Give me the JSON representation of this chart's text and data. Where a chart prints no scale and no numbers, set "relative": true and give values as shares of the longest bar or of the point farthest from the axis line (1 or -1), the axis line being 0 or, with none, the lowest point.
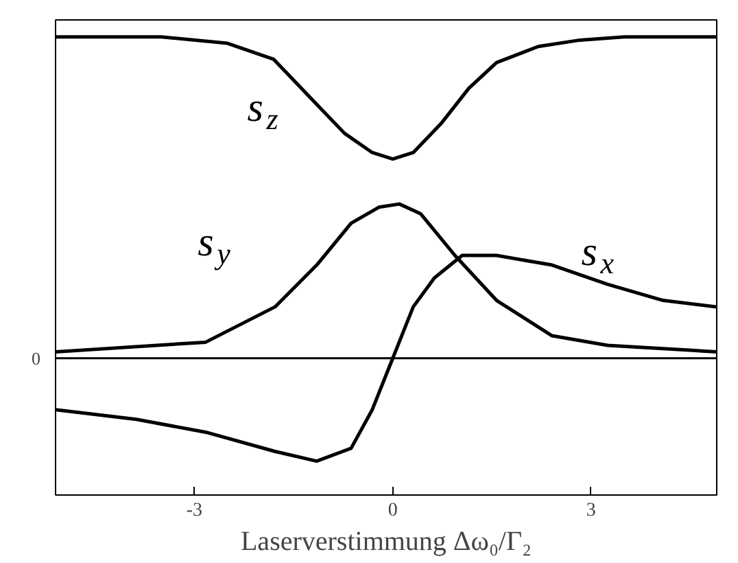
{
  "chart_data": {
    "type": "line",
    "relative": true,
    "xlabel": "Laserverstimmung Δω₀/Γ₂",
    "xlim": [
      -5.1,
      4.9
    ],
    "xticks": [
      -3,
      0,
      3
    ],
    "grid": false,
    "legend": false,
    "marker": "none",
    "line_style": "solid",
    "tick_labels": "x",
    "ref_lines": [
      {
        "axis": "y",
        "value": 0,
        "label": "0",
        "color": "#000000"
      }
    ],
    "series": [
      {
        "name": "s$_{z}$",
        "color": "#000000",
        "x": [
          -5.1,
          -3.5,
          -2.5,
          -1.8,
          -1.15,
          -0.73,
          -0.31,
          0,
          0.31,
          0.73,
          1.15,
          1.57,
          2.2,
          2.83,
          3.5,
          4.9
        ],
        "values": [
          1.0,
          1.0,
          0.98,
          0.93,
          0.79,
          0.7,
          0.64,
          0.62,
          0.64,
          0.73,
          0.84,
          0.92,
          0.97,
          0.99,
          1.0,
          1.0
        ]
      },
      {
        "name": "s$_{y}$",
        "color": "#000000",
        "x": [
          -5.1,
          -2.83,
          -1.78,
          -1.15,
          -0.63,
          -0.21,
          0.1,
          0.42,
          0.94,
          1.57,
          2.41,
          3.25,
          4.9
        ],
        "values": [
          0.02,
          0.05,
          0.16,
          0.29,
          0.42,
          0.47,
          0.48,
          0.45,
          0.32,
          0.18,
          0.07,
          0.04,
          0.02
        ]
      },
      {
        "name": "s$_{x}$",
        "color": "#000000",
        "x": [
          -5.1,
          -3.88,
          -2.83,
          -1.78,
          -1.15,
          -0.63,
          -0.31,
          0,
          0.31,
          0.63,
          1.05,
          1.57,
          2.41,
          3.25,
          4.09,
          4.9
        ],
        "values": [
          -0.16,
          -0.19,
          -0.23,
          -0.29,
          -0.32,
          -0.28,
          -0.16,
          0,
          0.16,
          0.25,
          0.32,
          0.32,
          0.29,
          0.23,
          0.18,
          0.16
        ]
      }
    ]
  }
}
